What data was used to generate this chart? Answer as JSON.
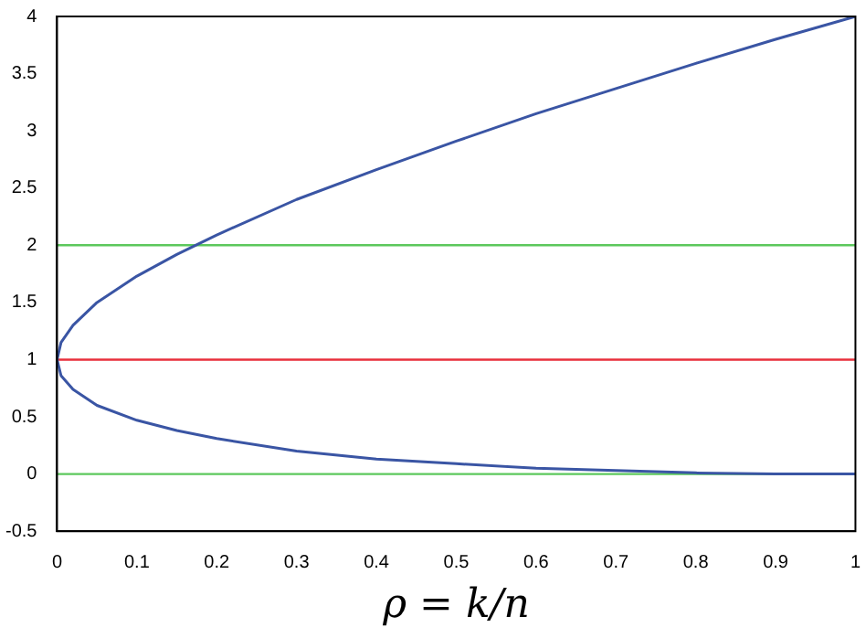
{
  "chart_data": {
    "type": "line",
    "xlabel": "ρ = k/n",
    "x": [
      0,
      0.005,
      0.02,
      0.05,
      0.1,
      0.15,
      0.2,
      0.3,
      0.4,
      0.5,
      0.6,
      0.7,
      0.8,
      0.9,
      1
    ],
    "series": [
      {
        "color": "#3a55a4",
        "values": [
          1,
          1.15,
          1.3,
          1.5,
          1.73,
          1.92,
          2.09,
          2.4,
          2.66,
          2.91,
          3.15,
          3.37,
          3.59,
          3.8,
          4
        ]
      },
      {
        "color": "#3a55a4",
        "values": [
          1,
          0.86,
          0.74,
          0.6,
          0.47,
          0.38,
          0.31,
          0.2,
          0.13,
          0.09,
          0.05,
          0.03,
          0.01,
          0,
          0
        ]
      }
    ],
    "ref_lines": [
      {
        "axis": "y",
        "value": 2,
        "color": "#5cc85c"
      },
      {
        "axis": "y",
        "value": 1,
        "color": "#e8303c"
      },
      {
        "axis": "y",
        "value": 0,
        "color": "#5cc85c"
      }
    ],
    "xlim": [
      0,
      1
    ],
    "xticks": [
      0,
      0.1,
      0.2,
      0.3,
      0.4,
      0.5,
      0.6,
      0.7,
      0.8,
      0.9,
      1
    ],
    "ylim": [
      -0.5,
      4
    ],
    "yticks": [
      -0.5,
      0,
      0.5,
      1,
      1.5,
      2,
      2.5,
      3,
      3.5,
      4
    ],
    "grid": false,
    "legend": false,
    "marker": "none",
    "line_style": "solid"
  }
}
